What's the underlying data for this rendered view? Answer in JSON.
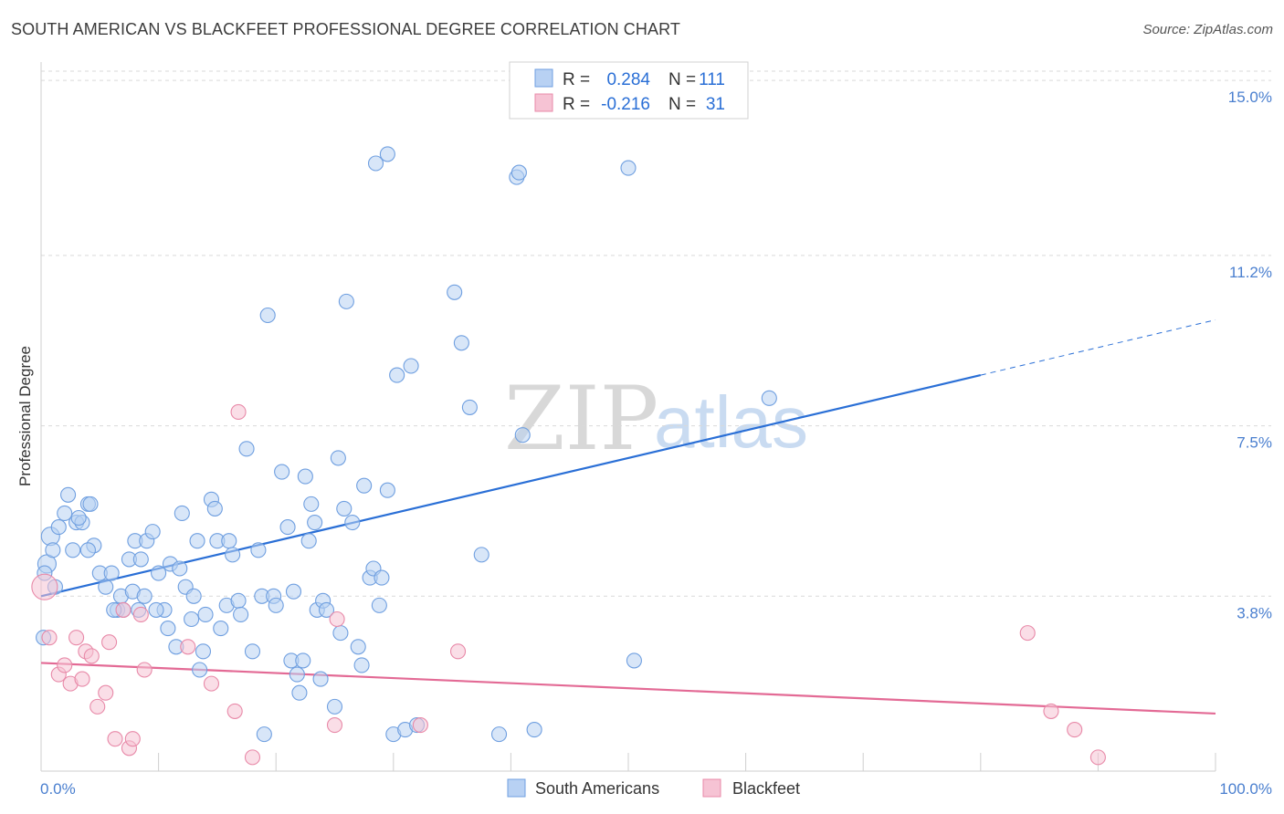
{
  "title": "SOUTH AMERICAN VS BLACKFEET PROFESSIONAL DEGREE CORRELATION CHART",
  "source": "Source: ZipAtlas.com",
  "watermark": {
    "zip": "ZIP",
    "atlas": "atlas"
  },
  "colors": {
    "south_americans": "#6f9fe0",
    "south_americans_fill": "#b8d1f3",
    "south_americans_line": "#2a6fd6",
    "blackfeet": "#e889a8",
    "blackfeet_fill": "#f6c3d4",
    "blackfeet_line": "#e36a95",
    "grid": "#d9d9d9",
    "axis_tick": "#4a7fcf"
  },
  "stats": {
    "r_label": "R =",
    "n_label": "N =",
    "south_americans": {
      "r": "0.284",
      "n": "111"
    },
    "blackfeet": {
      "r": "-0.216",
      "n": "31"
    }
  },
  "legend": {
    "south_americans": "South Americans",
    "blackfeet": "Blackfeet"
  },
  "chart_data": {
    "type": "scatter",
    "title": "SOUTH AMERICAN VS BLACKFEET PROFESSIONAL DEGREE CORRELATION CHART",
    "xlabel": "",
    "ylabel": "Professional Degree",
    "xlim": [
      0,
      100
    ],
    "ylim": [
      0,
      15.4
    ],
    "x_tick_labels": [
      "0.0%",
      "100.0%"
    ],
    "y_ticks": [
      3.8,
      7.5,
      11.2,
      15.0
    ],
    "y_tick_labels": [
      "3.8%",
      "7.5%",
      "11.2%",
      "15.0%"
    ],
    "grid": true,
    "legend_position": "bottom-center",
    "series": [
      {
        "name": "South Americans",
        "trend": {
          "x0": 0,
          "y0": 3.8,
          "x1": 80,
          "y1": 8.6,
          "dashed_to_x": 100,
          "dashed_to_y": 9.8
        },
        "points": [
          [
            0.5,
            4.5
          ],
          [
            0.8,
            5.1
          ],
          [
            1.0,
            4.8
          ],
          [
            1.5,
            5.3
          ],
          [
            2.0,
            5.6
          ],
          [
            2.3,
            6.0
          ],
          [
            2.7,
            4.8
          ],
          [
            3.0,
            5.4
          ],
          [
            3.5,
            5.4
          ],
          [
            4.0,
            5.8
          ],
          [
            4.2,
            5.8
          ],
          [
            4.5,
            4.9
          ],
          [
            4.0,
            4.8
          ],
          [
            5.0,
            4.3
          ],
          [
            5.5,
            4.0
          ],
          [
            6.0,
            4.3
          ],
          [
            6.5,
            3.5
          ],
          [
            6.8,
            3.8
          ],
          [
            7.0,
            3.5
          ],
          [
            7.5,
            4.6
          ],
          [
            7.8,
            3.9
          ],
          [
            8.0,
            5.0
          ],
          [
            8.3,
            3.5
          ],
          [
            8.5,
            4.6
          ],
          [
            8.8,
            3.8
          ],
          [
            9.0,
            5.0
          ],
          [
            9.5,
            5.2
          ],
          [
            10.0,
            4.3
          ],
          [
            10.5,
            3.5
          ],
          [
            10.8,
            3.1
          ],
          [
            11.0,
            4.5
          ],
          [
            11.5,
            2.7
          ],
          [
            11.8,
            4.4
          ],
          [
            12.0,
            5.6
          ],
          [
            12.3,
            4.0
          ],
          [
            12.8,
            3.3
          ],
          [
            13.0,
            3.8
          ],
          [
            13.3,
            5.0
          ],
          [
            13.5,
            2.2
          ],
          [
            13.8,
            2.6
          ],
          [
            14.0,
            3.4
          ],
          [
            14.5,
            5.9
          ],
          [
            14.8,
            5.7
          ],
          [
            15.0,
            5.0
          ],
          [
            15.3,
            3.1
          ],
          [
            15.8,
            3.6
          ],
          [
            16.0,
            5.0
          ],
          [
            16.3,
            4.7
          ],
          [
            16.8,
            3.7
          ],
          [
            17.0,
            3.4
          ],
          [
            17.5,
            7.0
          ],
          [
            18.0,
            2.6
          ],
          [
            18.5,
            4.8
          ],
          [
            18.8,
            3.8
          ],
          [
            19.0,
            0.8
          ],
          [
            19.3,
            9.9
          ],
          [
            19.8,
            3.8
          ],
          [
            20.0,
            3.6
          ],
          [
            20.5,
            6.5
          ],
          [
            21.0,
            5.3
          ],
          [
            21.3,
            2.4
          ],
          [
            21.5,
            3.9
          ],
          [
            21.8,
            2.1
          ],
          [
            22.0,
            1.7
          ],
          [
            22.3,
            2.4
          ],
          [
            22.5,
            6.4
          ],
          [
            22.8,
            5.0
          ],
          [
            23.0,
            5.8
          ],
          [
            23.3,
            5.4
          ],
          [
            23.5,
            3.5
          ],
          [
            23.8,
            2.0
          ],
          [
            24.0,
            3.7
          ],
          [
            24.3,
            3.5
          ],
          [
            25.0,
            1.4
          ],
          [
            25.3,
            6.8
          ],
          [
            25.5,
            3.0
          ],
          [
            25.8,
            5.7
          ],
          [
            26.0,
            10.2
          ],
          [
            26.5,
            5.4
          ],
          [
            27.0,
            2.7
          ],
          [
            27.3,
            2.3
          ],
          [
            27.5,
            6.2
          ],
          [
            28.0,
            4.2
          ],
          [
            28.3,
            4.4
          ],
          [
            28.8,
            3.6
          ],
          [
            29.0,
            4.2
          ],
          [
            29.5,
            6.1
          ],
          [
            30.0,
            0.8
          ],
          [
            30.3,
            8.6
          ],
          [
            31.0,
            0.9
          ],
          [
            31.5,
            8.8
          ],
          [
            32.0,
            1.0
          ],
          [
            28.5,
            13.2
          ],
          [
            29.5,
            13.4
          ],
          [
            40.5,
            12.9
          ],
          [
            40.7,
            13.0
          ],
          [
            50.0,
            13.1
          ],
          [
            35.2,
            10.4
          ],
          [
            35.8,
            9.3
          ],
          [
            36.5,
            7.9
          ],
          [
            37.5,
            4.7
          ],
          [
            39.0,
            0.8
          ],
          [
            41.0,
            7.3
          ],
          [
            42.0,
            0.9
          ],
          [
            50.5,
            2.4
          ],
          [
            62.0,
            8.1
          ],
          [
            0.3,
            4.3
          ],
          [
            0.2,
            2.9
          ],
          [
            1.2,
            4.0
          ],
          [
            3.2,
            5.5
          ],
          [
            6.2,
            3.5
          ],
          [
            9.8,
            3.5
          ]
        ]
      },
      {
        "name": "Blackfeet",
        "trend": {
          "x0": 0,
          "y0": 2.35,
          "x1": 100,
          "y1": 1.25
        },
        "points": [
          [
            0.3,
            4.0
          ],
          [
            0.7,
            2.9
          ],
          [
            1.5,
            2.1
          ],
          [
            2.0,
            2.3
          ],
          [
            2.5,
            1.9
          ],
          [
            3.0,
            2.9
          ],
          [
            3.5,
            2.0
          ],
          [
            3.8,
            2.6
          ],
          [
            4.3,
            2.5
          ],
          [
            4.8,
            1.4
          ],
          [
            5.5,
            1.7
          ],
          [
            5.8,
            2.8
          ],
          [
            6.3,
            0.7
          ],
          [
            7.0,
            3.5
          ],
          [
            7.5,
            0.5
          ],
          [
            7.8,
            0.7
          ],
          [
            8.5,
            3.4
          ],
          [
            8.8,
            2.2
          ],
          [
            12.5,
            2.7
          ],
          [
            14.5,
            1.9
          ],
          [
            16.5,
            1.3
          ],
          [
            16.8,
            7.8
          ],
          [
            18.0,
            0.3
          ],
          [
            25.0,
            1.0
          ],
          [
            25.2,
            3.3
          ],
          [
            32.3,
            1.0
          ],
          [
            35.5,
            2.6
          ],
          [
            84.0,
            3.0
          ],
          [
            86.0,
            1.3
          ],
          [
            88.0,
            0.9
          ],
          [
            90.0,
            0.3
          ]
        ]
      }
    ]
  }
}
